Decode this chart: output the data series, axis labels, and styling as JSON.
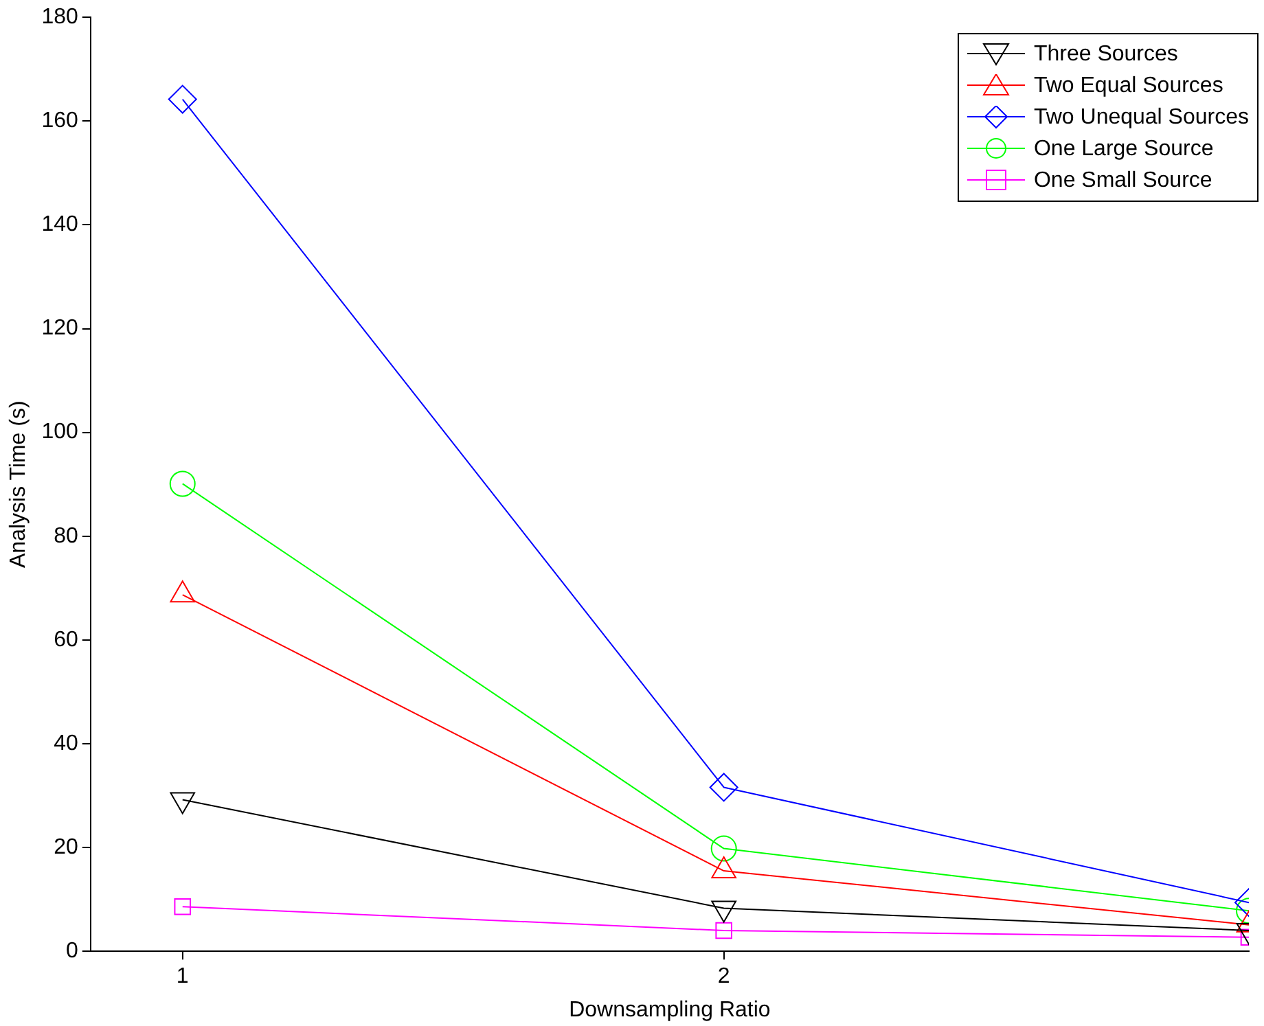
{
  "chart_data": {
    "type": "line",
    "xlabel": "Downsampling Ratio",
    "ylabel": "Analysis Time (s)",
    "x": [
      1,
      2,
      2.97
    ],
    "xlim": [
      0.83,
      2.97
    ],
    "xticks": [
      1,
      2
    ],
    "ylim": [
      0,
      180
    ],
    "yticks": [
      0,
      20,
      40,
      60,
      80,
      100,
      120,
      140,
      160,
      180
    ],
    "grid": false,
    "legend": "top right",
    "line_style": "solid",
    "series": [
      {
        "name": "Three Sources",
        "color": "#000000",
        "marker": "triangle-down",
        "values": [
          29.2,
          8.3,
          4
        ]
      },
      {
        "name": "Two Equal Sources",
        "color": "#ff0000",
        "marker": "triangle",
        "values": [
          68.7,
          15.5,
          5.1
        ]
      },
      {
        "name": "Two Unequal Sources",
        "color": "#0000ff",
        "marker": "diamond",
        "values": [
          164.2,
          31.6,
          9.4
        ]
      },
      {
        "name": "One Large Source",
        "color": "#00ff00",
        "marker": "circle",
        "values": [
          90.1,
          19.8,
          7.8
        ]
      },
      {
        "name": "One Small Source",
        "color": "#ff00ff",
        "marker": "square",
        "values": [
          8.6,
          4,
          2.7
        ]
      }
    ]
  }
}
